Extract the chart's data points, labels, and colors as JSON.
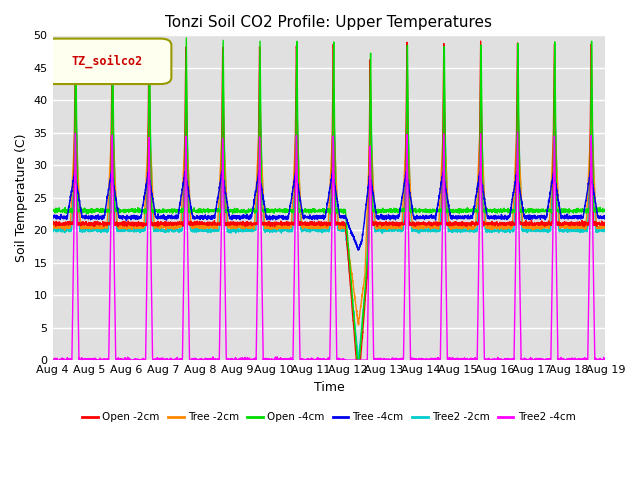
{
  "title": "Tonzi Soil CO2 Profile: Upper Temperatures",
  "xlabel": "Time",
  "ylabel": "Soil Temperature (C)",
  "ylim": [
    0,
    50
  ],
  "x_tick_labels": [
    "Aug 4",
    "Aug 5",
    "Aug 6",
    "Aug 7",
    "Aug 8",
    "Aug 9",
    "Aug 10",
    "Aug 11",
    "Aug 12",
    "Aug 13",
    "Aug 14",
    "Aug 15",
    "Aug 16",
    "Aug 17",
    "Aug 18",
    "Aug 19"
  ],
  "legend_label": "TZ_soilco2",
  "series_labels": [
    "Open -2cm",
    "Tree -2cm",
    "Open -4cm",
    "Tree -4cm",
    "Tree2 -2cm",
    "Tree2 -4cm"
  ],
  "series_colors": [
    "#ff0000",
    "#ff8800",
    "#00dd00",
    "#0000ee",
    "#00cccc",
    "#ff00ff"
  ],
  "bg_color": "#e0e0e0",
  "grid_color": "#ffffff",
  "num_days": 15,
  "pts_per_day": 240
}
